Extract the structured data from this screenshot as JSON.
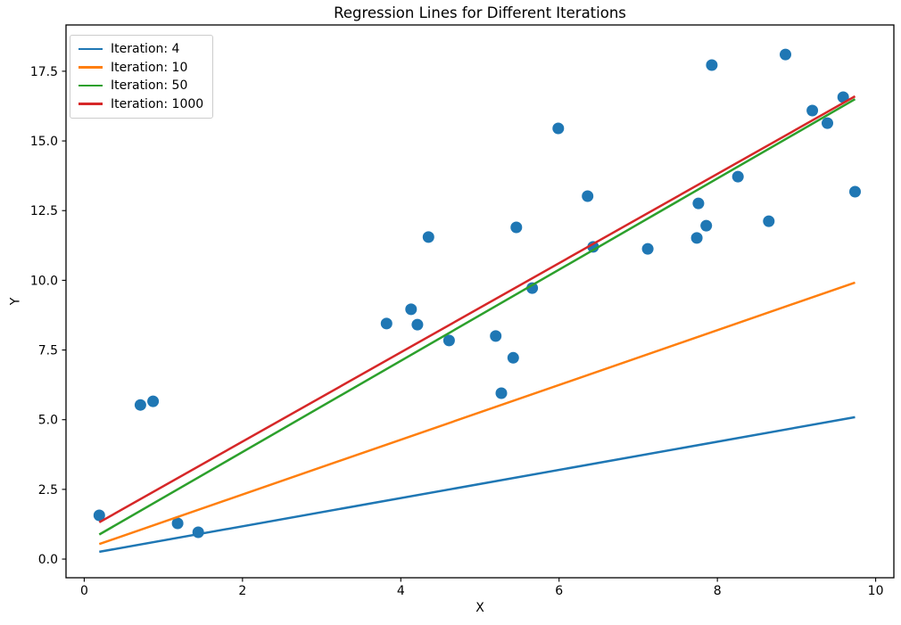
{
  "chart_data": {
    "type": "scatter",
    "title": "Regression Lines for Different Iterations",
    "xlabel": "X",
    "ylabel": "Y",
    "xlim": [
      -0.23,
      10.23
    ],
    "ylim": [
      -0.67,
      19.16
    ],
    "x_ticks": [
      0,
      2,
      4,
      6,
      8,
      10
    ],
    "x_tick_labels": [
      "0",
      "2",
      "4",
      "6",
      "8",
      "10"
    ],
    "y_ticks": [
      0,
      2.5,
      5,
      7.5,
      10,
      12.5,
      15,
      17.5
    ],
    "y_tick_labels": [
      "0.0",
      "2.5",
      "5.0",
      "7.5",
      "10.0",
      "12.5",
      "15.0",
      "17.5"
    ],
    "grid": false,
    "legend_position": "upper left",
    "scatter_color": "#1f77b4",
    "scatter_points": [
      [
        0.19,
        1.57
      ],
      [
        0.71,
        5.53
      ],
      [
        0.87,
        5.66
      ],
      [
        1.18,
        1.28
      ],
      [
        1.44,
        0.96
      ],
      [
        3.82,
        8.45
      ],
      [
        4.13,
        8.96
      ],
      [
        4.21,
        8.41
      ],
      [
        4.35,
        11.55
      ],
      [
        4.61,
        7.84
      ],
      [
        5.2,
        8.0
      ],
      [
        5.27,
        5.95
      ],
      [
        5.42,
        7.22
      ],
      [
        5.46,
        11.9
      ],
      [
        5.66,
        9.72
      ],
      [
        5.99,
        15.45
      ],
      [
        6.36,
        13.02
      ],
      [
        6.43,
        11.2
      ],
      [
        7.12,
        11.13
      ],
      [
        7.74,
        11.52
      ],
      [
        7.76,
        12.76
      ],
      [
        7.86,
        11.96
      ],
      [
        7.93,
        17.72
      ],
      [
        8.26,
        13.72
      ],
      [
        8.65,
        12.12
      ],
      [
        8.86,
        18.1
      ],
      [
        9.2,
        16.09
      ],
      [
        9.39,
        15.64
      ],
      [
        9.59,
        16.57
      ],
      [
        9.74,
        13.18
      ]
    ],
    "lines": [
      {
        "label": "Iteration: 4",
        "color": "#1f77b4",
        "x": [
          0.19,
          9.74
        ],
        "y": [
          0.26,
          5.09
        ]
      },
      {
        "label": "Iteration: 10",
        "color": "#ff7f0e",
        "x": [
          0.19,
          9.74
        ],
        "y": [
          0.54,
          9.92
        ]
      },
      {
        "label": "Iteration: 50",
        "color": "#2ca02c",
        "x": [
          0.19,
          9.74
        ],
        "y": [
          0.88,
          16.5
        ]
      },
      {
        "label": "Iteration: 1000",
        "color": "#d62728",
        "x": [
          0.19,
          9.74
        ],
        "y": [
          1.32,
          16.6
        ]
      }
    ]
  }
}
